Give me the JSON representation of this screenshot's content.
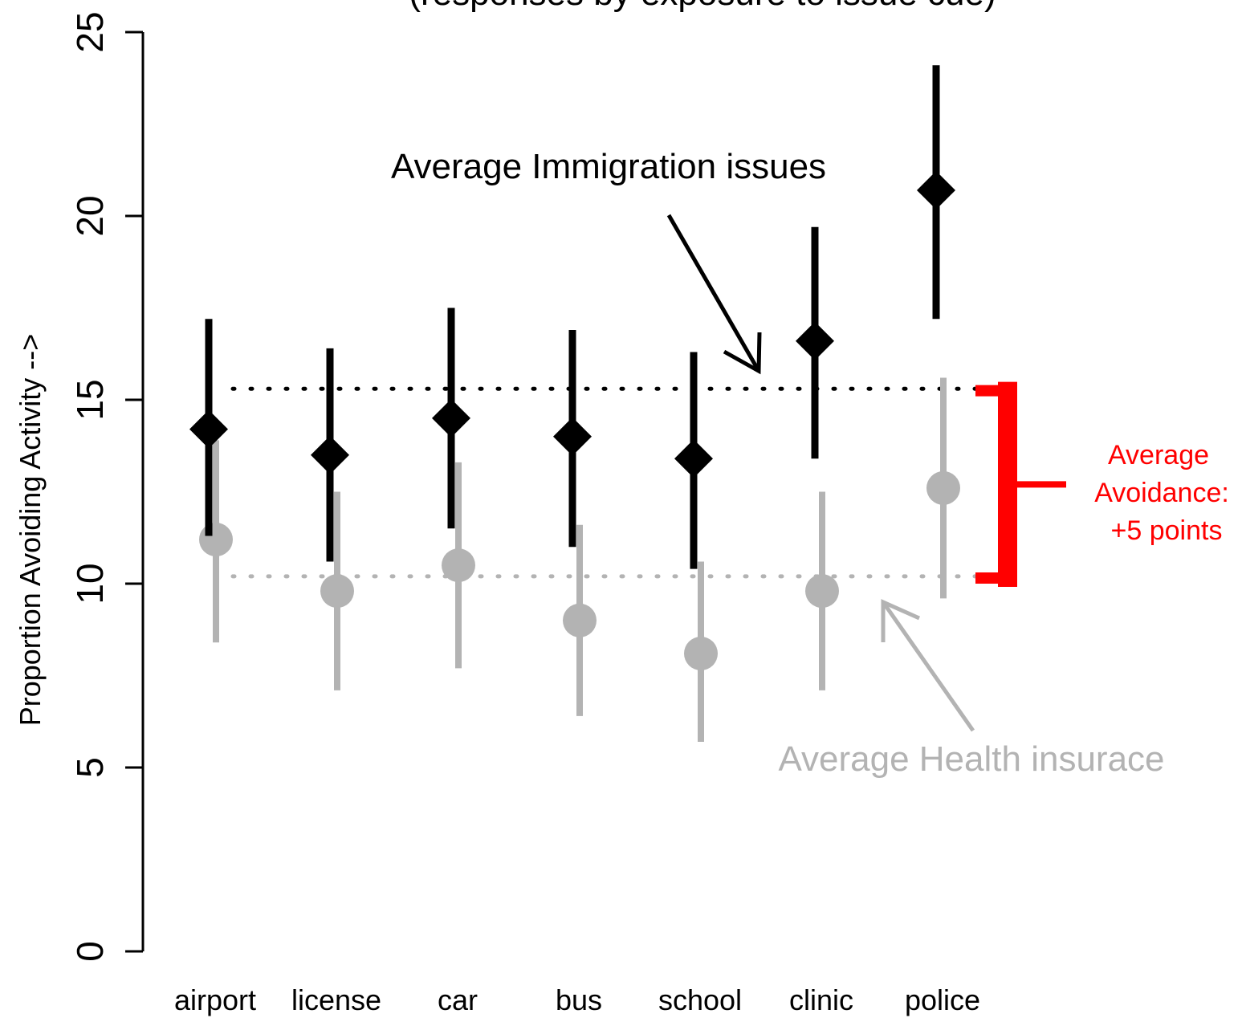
{
  "chart_data": {
    "type": "scatter",
    "title": "(responses by exposure to issue cue)",
    "xlabel": "",
    "ylabel": "Proportion Avoiding Activity -->",
    "ylim": [
      0,
      25
    ],
    "yticks": [
      0,
      5,
      10,
      15,
      20,
      25
    ],
    "categories": [
      "airport",
      "license",
      "car",
      "bus",
      "school",
      "clinic",
      "police"
    ],
    "grid": false,
    "series": [
      {
        "name": "Immigration issues",
        "color": "#000000",
        "marker": "diamond",
        "values": [
          14.2,
          13.5,
          14.5,
          14.0,
          13.4,
          16.6,
          20.7
        ],
        "lower": [
          11.3,
          10.6,
          11.5,
          11.0,
          10.4,
          13.4,
          17.2
        ],
        "upper": [
          17.2,
          16.4,
          17.5,
          16.9,
          16.3,
          19.7,
          24.1
        ]
      },
      {
        "name": "Health insurace",
        "color": "#b3b3b3",
        "marker": "circle",
        "values": [
          11.2,
          9.8,
          10.5,
          9.0,
          8.1,
          9.8,
          12.6
        ],
        "lower": [
          8.4,
          7.1,
          7.7,
          6.4,
          5.7,
          7.1,
          9.6
        ],
        "upper": [
          13.9,
          12.5,
          13.3,
          11.6,
          10.6,
          12.5,
          15.6
        ]
      }
    ],
    "reference_lines": [
      {
        "label": "Average Immigration issues",
        "value": 15.3,
        "color": "#000000"
      },
      {
        "label": "Average Health insurace",
        "value": 10.2,
        "color": "#b3b3b3"
      }
    ],
    "bracket": {
      "color": "#ff0000",
      "from": 10.0,
      "to": 15.4,
      "label_lines": [
        "Average",
        "Avoidance:",
        "+5 points"
      ]
    }
  }
}
